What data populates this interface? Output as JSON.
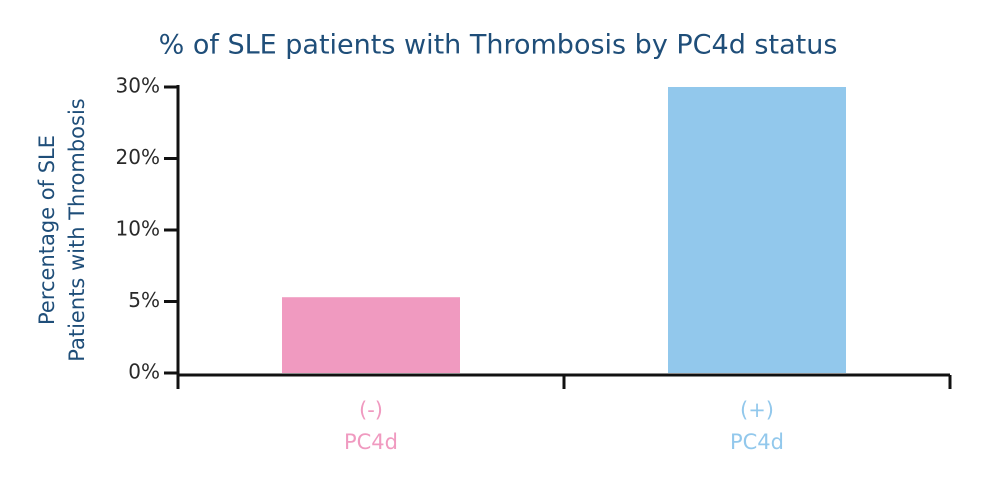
{
  "chart_data": {
    "type": "bar",
    "title": "% of SLE patients with Thrombosis by PC4d status",
    "ylabel": [
      "Percentage of SLE",
      "Patients with Thrombosis"
    ],
    "categories": [
      [
        "(-)",
        "PC4d"
      ],
      [
        "(+)",
        "PC4d"
      ]
    ],
    "values": [
      5.3,
      30
    ],
    "colors": [
      "#f09ac0",
      "#92c8ec"
    ],
    "ylim": [
      0,
      30
    ],
    "yticks": [
      {
        "value": 0,
        "label": "0%"
      },
      {
        "value": 5,
        "label": "5%"
      },
      {
        "value": 10,
        "label": "10%"
      },
      {
        "value": 20,
        "label": "20%"
      },
      {
        "value": 30,
        "label": "30%"
      }
    ],
    "grid": false
  }
}
